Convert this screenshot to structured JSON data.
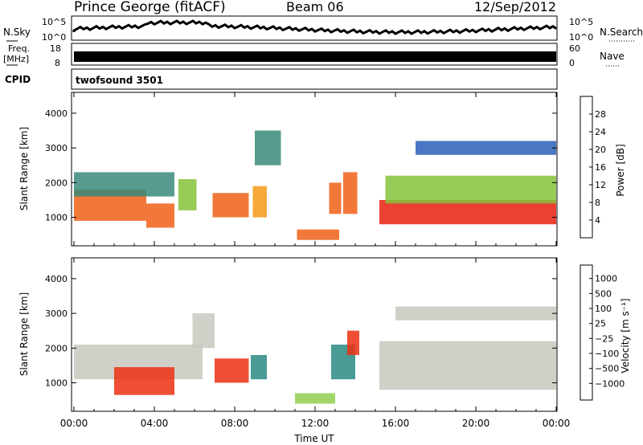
{
  "header": {
    "station": "Prince George (fitACF)",
    "beam": "Beam 06",
    "date": "12/Sep/2012"
  },
  "strips": {
    "nsky_label": "N.Sky",
    "nsky_tick_hi": "10^5",
    "nsky_tick_lo": "10^0",
    "nsearch_label": "N.Search",
    "nsearch_tick_hi": "10^5",
    "nsearch_tick_lo": "10^0",
    "freq_label": "Freq.",
    "freq_unit": "[MHz]",
    "freq_tick_hi": "18",
    "freq_tick_lo": "8",
    "nave_label": "Nave",
    "nave_tick_hi": "60",
    "nave_tick_lo": "0",
    "cpid_label": "CPID",
    "cpid_value": "twofsound 3501"
  },
  "chart_data": [
    {
      "type": "heatmap",
      "panel": "power",
      "ylabel": "Slant Range [km]",
      "ylim": [
        180,
        4600
      ],
      "yticks": [
        "1000",
        "2000",
        "3000",
        "4000"
      ],
      "xlim": [
        0,
        24
      ],
      "xticks": [
        "00:00",
        "04:00",
        "08:00",
        "12:00",
        "16:00",
        "20:00",
        "00:00"
      ],
      "colorbar": {
        "label": "Power [dB]",
        "ticks": [
          "4",
          "8",
          "12",
          "16",
          "20",
          "24",
          "28"
        ],
        "colors": [
          "#1428ff",
          "#2a5fb8",
          "#3a8a7a",
          "#5aa85a",
          "#86c23a",
          "#e8c020",
          "#f59a18",
          "#f06018",
          "#e82010",
          "#d80808"
        ]
      },
      "regions": [
        {
          "t0": 0.0,
          "t1": 3.6,
          "r0": 900,
          "r1": 1800,
          "value": 24
        },
        {
          "t0": 0.0,
          "t1": 5.0,
          "r0": 1600,
          "r1": 2300,
          "value": 10
        },
        {
          "t0": 3.6,
          "t1": 5.0,
          "r0": 700,
          "r1": 1400,
          "value": 24
        },
        {
          "t0": 5.2,
          "t1": 6.1,
          "r0": 1200,
          "r1": 2100,
          "value": 14
        },
        {
          "t0": 6.9,
          "t1": 8.7,
          "r0": 1000,
          "r1": 1700,
          "value": 22
        },
        {
          "t0": 8.9,
          "t1": 9.6,
          "r0": 1000,
          "r1": 1900,
          "value": 20
        },
        {
          "t0": 11.1,
          "t1": 13.2,
          "r0": 350,
          "r1": 650,
          "value": 24
        },
        {
          "t0": 12.7,
          "t1": 13.3,
          "r0": 1100,
          "r1": 2000,
          "value": 22
        },
        {
          "t0": 13.4,
          "t1": 14.1,
          "r0": 1100,
          "r1": 2300,
          "value": 22
        },
        {
          "t0": 9.0,
          "t1": 10.3,
          "r0": 2500,
          "r1": 3500,
          "value": 8
        },
        {
          "t0": 15.2,
          "t1": 24.0,
          "r0": 800,
          "r1": 1500,
          "value": 26
        },
        {
          "t0": 15.5,
          "t1": 24.0,
          "r0": 1400,
          "r1": 2200,
          "value": 14
        },
        {
          "t0": 17.0,
          "t1": 24.0,
          "r0": 2800,
          "r1": 3200,
          "value": 6
        }
      ]
    },
    {
      "type": "heatmap",
      "panel": "velocity",
      "ylabel": "Slant Range [km]",
      "ylim": [
        180,
        4600
      ],
      "yticks": [
        "1000",
        "2000",
        "3000",
        "4000"
      ],
      "xlim": [
        0,
        24
      ],
      "xticks": [
        "00:00",
        "04:00",
        "08:00",
        "12:00",
        "16:00",
        "20:00",
        "00:00"
      ],
      "xlabel": "Time UT",
      "colorbar": {
        "label": "Velocity [m s⁻¹]",
        "ticks": [
          "1000",
          "500",
          "100",
          "25",
          "−25",
          "−100",
          "−500",
          "−1000"
        ],
        "colors": [
          "#2038c8",
          "#2c6ab0",
          "#2a8a80",
          "#40b040",
          "#90d050",
          "#c8c8c0",
          "#c8c8c0",
          "#f0b830",
          "#f08a20",
          "#f06018",
          "#ec3010",
          "#e00808"
        ]
      },
      "regions": [
        {
          "t0": 0.0,
          "t1": 6.4,
          "r0": 1100,
          "r1": 2100,
          "value": 0
        },
        {
          "t0": 2.0,
          "t1": 5.0,
          "r0": 650,
          "r1": 1450,
          "value": -700
        },
        {
          "t0": 5.9,
          "t1": 7.0,
          "r0": 2000,
          "r1": 3000,
          "value": 0
        },
        {
          "t0": 7.0,
          "t1": 8.7,
          "r0": 1000,
          "r1": 1700,
          "value": -600
        },
        {
          "t0": 8.8,
          "t1": 9.6,
          "r0": 1100,
          "r1": 1800,
          "value": 300
        },
        {
          "t0": 11.0,
          "t1": 13.0,
          "r0": 400,
          "r1": 700,
          "value": 80
        },
        {
          "t0": 12.8,
          "t1": 14.0,
          "r0": 1100,
          "r1": 2100,
          "value": 400
        },
        {
          "t0": 13.6,
          "t1": 14.2,
          "r0": 1800,
          "r1": 2500,
          "value": -600
        },
        {
          "t0": 15.2,
          "t1": 24.0,
          "r0": 800,
          "r1": 2200,
          "value": 0
        },
        {
          "t0": 16.0,
          "t1": 24.0,
          "r0": 2800,
          "r1": 3200,
          "value": 0
        }
      ]
    }
  ]
}
